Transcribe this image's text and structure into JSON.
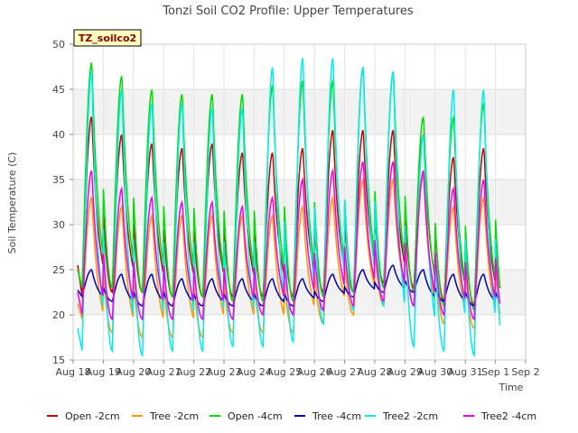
{
  "chart_data": {
    "type": "line",
    "title": "Tonzi Soil CO2 Profile: Upper Temperatures",
    "xlabel": "Time",
    "ylabel": "Soil Temperature (C)",
    "badge": "TZ_soilco2",
    "xlim": [
      0,
      15
    ],
    "ylim": [
      15,
      50
    ],
    "yticks": [
      15,
      20,
      25,
      30,
      35,
      40,
      45,
      50
    ],
    "xtick_labels": [
      "Aug 18",
      "Aug 19",
      "Aug 20",
      "Aug 21",
      "Aug 22",
      "Aug 23",
      "Aug 24",
      "Aug 25",
      "Aug 26",
      "Aug 27",
      "Aug 28",
      "Aug 29",
      "Aug 30",
      "Aug 31",
      "Sep 1",
      "Sep 2"
    ],
    "grid": true,
    "legend_position": "bottom",
    "series": [
      {
        "name": "Open -2cm",
        "color": "#cc0000",
        "daily_max": [
          42,
          40,
          39,
          38.5,
          39,
          38,
          38,
          38.5,
          40.5,
          40.5,
          40.5,
          40,
          37.5,
          38.5
        ],
        "daily_min": [
          22,
          22.5,
          22.5,
          22,
          22,
          22,
          22,
          22,
          22.5,
          22.5,
          23.5,
          23,
          21.5,
          21
        ],
        "start": 29,
        "end": 25.5
      },
      {
        "name": "Tree -2cm",
        "color": "#ff9900",
        "daily_max": [
          33,
          32,
          31,
          31,
          31,
          31,
          31,
          32,
          33,
          35,
          35,
          35.5,
          32,
          33
        ],
        "daily_min": [
          19.5,
          18,
          17.5,
          17.5,
          17.5,
          18,
          18,
          18,
          19,
          20,
          21,
          21,
          19,
          18.5
        ],
        "start": 23,
        "end": 22
      },
      {
        "name": "Open -4cm",
        "color": "#00dd00",
        "daily_max": [
          48,
          46.5,
          45,
          44.5,
          44.5,
          44.5,
          45.5,
          46,
          46,
          47.5,
          47,
          42,
          42,
          43.5
        ],
        "daily_min": [
          23,
          23,
          22.5,
          22,
          22,
          21.5,
          21.5,
          21.5,
          22,
          22.5,
          23,
          22.5,
          21,
          20.5
        ],
        "start": 27,
        "end": 24
      },
      {
        "name": "Tree -4cm",
        "color": "#0000bb",
        "daily_max": [
          25,
          24.5,
          24.5,
          24,
          24,
          24,
          24,
          24,
          24.5,
          25,
          25.5,
          25,
          24.5,
          24.5
        ],
        "daily_min": [
          22,
          21.5,
          21,
          21,
          21,
          21,
          21,
          21,
          21.5,
          22,
          22.5,
          22.5,
          21.5,
          21
        ],
        "start": 23.5,
        "end": 23
      },
      {
        "name": "Tree2 -2cm",
        "color": "#00eeee",
        "daily_max": [
          47,
          45,
          43.5,
          43.5,
          43,
          43,
          47.5,
          48.5,
          48.5,
          47.5,
          47,
          40,
          45,
          45
        ],
        "daily_min": [
          16,
          16,
          15.5,
          16,
          16,
          16.5,
          16.5,
          17,
          19,
          20.5,
          21,
          16.5,
          16,
          15.5
        ],
        "start": 21,
        "end": 20.5
      },
      {
        "name": "Tree2 -4cm",
        "color": "#ee00ee",
        "daily_max": [
          36,
          34,
          33,
          32.5,
          32.5,
          32,
          33,
          35,
          36,
          37,
          37,
          36,
          34,
          35
        ],
        "daily_min": [
          20,
          19.5,
          19.5,
          19.5,
          19.5,
          19.5,
          20,
          20,
          20.5,
          21,
          21.5,
          21,
          20,
          19.5
        ],
        "start": 25,
        "end": 24
      }
    ]
  }
}
